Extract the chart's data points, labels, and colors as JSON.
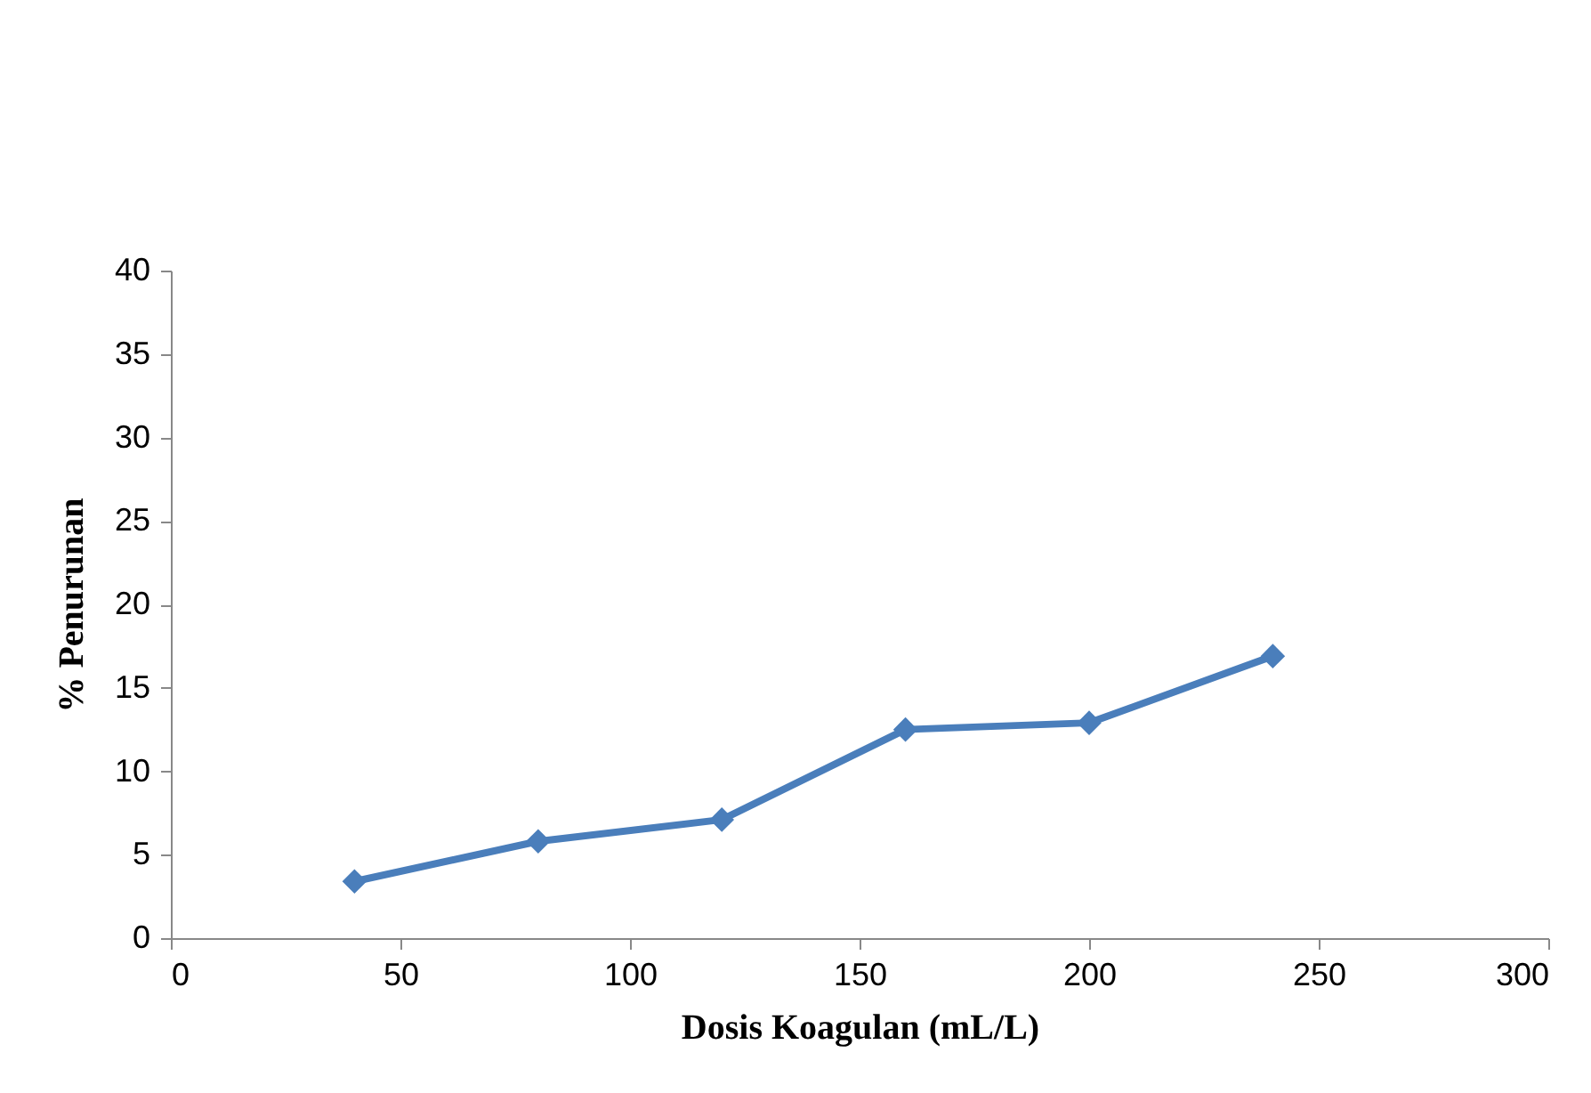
{
  "chart_data": {
    "type": "line",
    "xlabel": "Dosis Koagulan (mL/L)",
    "ylabel": "% Penurunan",
    "x": [
      40,
      80,
      120,
      160,
      200,
      240
    ],
    "series": [
      {
        "color": "#4a7ebb",
        "values": [
          3.4,
          5.8,
          7.1,
          12.5,
          12.9,
          16.9
        ]
      }
    ],
    "xlim": [
      0,
      300
    ],
    "xticks": [
      0,
      50,
      100,
      150,
      200,
      250,
      300
    ],
    "ylim": [
      0,
      40
    ],
    "yticks": [
      0,
      5,
      10,
      15,
      20,
      25,
      30,
      35,
      40
    ],
    "grid": false,
    "marker": "diamond",
    "line_style": "solid"
  }
}
